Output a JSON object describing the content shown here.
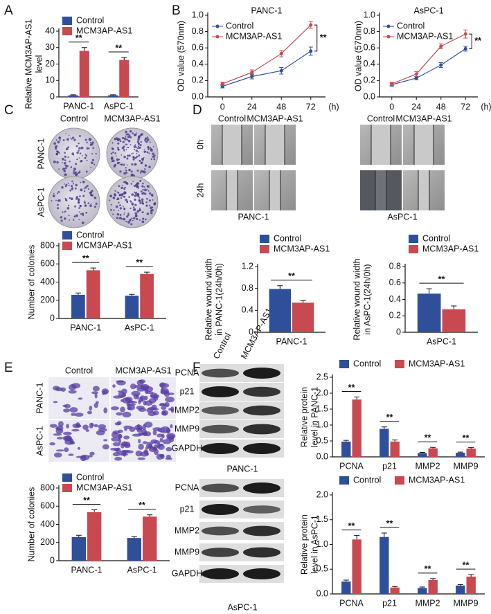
{
  "chart_data": [
    {
      "type": "bar",
      "ylabel": [
        "Relative MCM3AP-AS1",
        "level"
      ],
      "categories": [
        "PANC-1",
        "AsPC-1"
      ],
      "series": [
        {
          "name": "Control",
          "color": "#2f4f9b",
          "values": [
            1,
            1
          ],
          "errors": [
            0.3,
            0.3
          ]
        },
        {
          "name": "MCM3AP-AS1",
          "color": "#c8494f",
          "values": [
            28,
            22.5
          ],
          "errors": [
            2,
            1.5
          ]
        }
      ],
      "ylim": [
        0,
        40
      ],
      "yticks": [
        0,
        10,
        20,
        30,
        40
      ],
      "annotations": [
        "**",
        "**"
      ]
    },
    {
      "type": "line",
      "title": "PANC-1",
      "ylabel": [
        "OD value (570nm)"
      ],
      "x": [
        0,
        24,
        48,
        72
      ],
      "xlim": [
        -12,
        84
      ],
      "xticks": [
        0,
        24,
        48,
        72
      ],
      "xunit": "(h)",
      "series": [
        {
          "name": "Control",
          "color": "#2f4f9b",
          "values": [
            0.13,
            0.25,
            0.32,
            0.56
          ],
          "errors": [
            0.02,
            0.03,
            0.04,
            0.05
          ]
        },
        {
          "name": "MCM3AP-AS1",
          "color": "#c8494f",
          "values": [
            0.16,
            0.3,
            0.53,
            0.88
          ],
          "errors": [
            0.02,
            0.03,
            0.04,
            0.04
          ]
        }
      ],
      "ylim": [
        0,
        1.0
      ],
      "yticks": [
        {
          "value": 0,
          "label": "0.0"
        },
        0.2,
        0.4,
        0.6,
        0.8,
        {
          "value": 1.0,
          "label": "1.0"
        }
      ],
      "annotations": [
        "**"
      ]
    },
    {
      "type": "line",
      "title": "AsPC-1",
      "ylabel": [
        "OD value (570nm)"
      ],
      "x": [
        0,
        24,
        48,
        72
      ],
      "xlim": [
        -12,
        84
      ],
      "xticks": [
        0,
        24,
        48,
        72
      ],
      "xunit": "(h)",
      "series": [
        {
          "name": "Control",
          "color": "#2f4f9b",
          "values": [
            0.15,
            0.23,
            0.39,
            0.59
          ],
          "errors": [
            0.02,
            0.02,
            0.03,
            0.03
          ]
        },
        {
          "name": "MCM3AP-AS1",
          "color": "#c8494f",
          "values": [
            0.16,
            0.28,
            0.62,
            0.77
          ],
          "errors": [
            0.02,
            0.03,
            0.03,
            0.05
          ]
        }
      ],
      "ylim": [
        0,
        1.0
      ],
      "yticks": [
        {
          "value": 0,
          "label": "0.0"
        },
        0.2,
        0.4,
        0.6,
        0.8,
        {
          "value": 1.0,
          "label": "1.0"
        }
      ],
      "annotations": [
        "**"
      ]
    },
    {
      "type": "bar",
      "ylabel": [
        "Number of colonies"
      ],
      "categories": [
        "PANC-1",
        "AsPC-1"
      ],
      "series": [
        {
          "name": "Control",
          "color": "#2f4f9b",
          "values": [
            260,
            250
          ],
          "errors": [
            20,
            15
          ]
        },
        {
          "name": "MCM3AP-AS1",
          "color": "#c8494f",
          "values": [
            530,
            490
          ],
          "errors": [
            25,
            20
          ]
        }
      ],
      "ylim": [
        0,
        800
      ],
      "yticks": [
        0,
        200,
        400,
        600,
        800
      ],
      "annotations": [
        "**",
        "**"
      ]
    },
    {
      "type": "bar",
      "ylabel": [
        "Relative wound width",
        "in PANC-1(24h/0h)"
      ],
      "categories": [
        "PANC-1"
      ],
      "series": [
        {
          "name": "Control",
          "color": "#2f4f9b",
          "values": [
            0.79
          ],
          "errors": [
            0.06
          ]
        },
        {
          "name": "MCM3AP-AS1",
          "color": "#c8494f",
          "values": [
            0.54
          ],
          "errors": [
            0.04
          ]
        }
      ],
      "ylim": [
        0,
        1.2
      ],
      "yticks": [
        0,
        0.4,
        0.8,
        1.2
      ],
      "annotations": [
        "**"
      ]
    },
    {
      "type": "bar",
      "ylabel": [
        "Relative wound width",
        "in AsPC-1(24h/0h)"
      ],
      "categories": [
        "AsPC-1"
      ],
      "series": [
        {
          "name": "Control",
          "color": "#2f4f9b",
          "values": [
            0.47
          ],
          "errors": [
            0.06
          ]
        },
        {
          "name": "MCM3AP-AS1",
          "color": "#c8494f",
          "values": [
            0.28
          ],
          "errors": [
            0.04
          ]
        }
      ],
      "ylim": [
        0,
        0.8
      ],
      "yticks": [
        0,
        0.2,
        0.4,
        0.6,
        0.8
      ],
      "annotations": [
        "**"
      ]
    },
    {
      "type": "bar",
      "ylabel": [
        "Number of colonies"
      ],
      "categories": [
        "PANC-1",
        "AsPC-1"
      ],
      "series": [
        {
          "name": "Control",
          "color": "#2f4f9b",
          "values": [
            260,
            250
          ],
          "errors": [
            20,
            15
          ]
        },
        {
          "name": "MCM3AP-AS1",
          "color": "#c8494f",
          "values": [
            535,
            485
          ],
          "errors": [
            25,
            20
          ]
        }
      ],
      "ylim": [
        0,
        800
      ],
      "yticks": [
        0,
        200,
        400,
        600,
        800
      ],
      "annotations": [
        "**",
        "**"
      ]
    },
    {
      "type": "bar",
      "ylabel": [
        "Relative protein",
        "level in PANC-1"
      ],
      "categories": [
        "PCNA",
        "p21",
        "MMP2",
        "MMP9"
      ],
      "series": [
        {
          "name": "Control",
          "color": "#2f4f9b",
          "values": [
            0.48,
            0.88,
            0.12,
            0.13
          ],
          "errors": [
            0.04,
            0.06,
            0.02,
            0.02
          ]
        },
        {
          "name": "MCM3AP-AS1",
          "color": "#c8494f",
          "values": [
            1.8,
            0.48,
            0.27,
            0.26
          ],
          "errors": [
            0.08,
            0.05,
            0.03,
            0.03
          ]
        }
      ],
      "ylim": [
        0,
        2.5
      ],
      "yticks": [
        {
          "value": 0,
          "label": "0.0"
        },
        0.5,
        {
          "value": 1.0,
          "label": "1.0"
        },
        1.5,
        {
          "value": 2.0,
          "label": "2.0"
        },
        2.5
      ],
      "annotations": [
        "**",
        "**",
        "**",
        "**"
      ]
    },
    {
      "type": "bar",
      "ylabel": [
        "Relative protein",
        "level in AsPC-1"
      ],
      "categories": [
        "PCNA",
        "p21",
        "MMP2",
        "MMP9"
      ],
      "series": [
        {
          "name": "Control",
          "color": "#2f4f9b",
          "values": [
            0.25,
            1.15,
            0.12,
            0.17
          ],
          "errors": [
            0.03,
            0.08,
            0.02,
            0.02
          ]
        },
        {
          "name": "MCM3AP-AS1",
          "color": "#c8494f",
          "values": [
            1.1,
            0.13,
            0.28,
            0.35
          ],
          "errors": [
            0.08,
            0.02,
            0.03,
            0.04
          ]
        }
      ],
      "ylim": [
        0,
        2.0
      ],
      "yticks": [
        {
          "value": 0,
          "label": "0.0"
        },
        0.5,
        {
          "value": 1.0,
          "label": "1.0"
        },
        1.5,
        {
          "value": 2.0,
          "label": "2.0"
        }
      ],
      "annotations": [
        "**",
        "**",
        "**",
        "**"
      ]
    }
  ],
  "figure": {
    "panels": [
      "A",
      "B",
      "C",
      "D",
      "E",
      "F"
    ],
    "C": {
      "cols": [
        "Control",
        "MCM3AP-AS1"
      ],
      "rows": [
        "PANC-1",
        "AsPC-1"
      ]
    },
    "D": {
      "rows": [
        "0h",
        "24h"
      ],
      "groups": [
        {
          "cols": [
            "Control",
            "MCM3AP-AS1"
          ],
          "caption": "PANC-1"
        },
        {
          "cols": [
            "Control",
            "MCM3AP-AS1"
          ],
          "caption": "AsPC-1"
        }
      ]
    },
    "E": {
      "cols": [
        "Control",
        "MCM3AP-AS1"
      ],
      "rows": [
        "PANC-1",
        "AsPC-1"
      ]
    },
    "F": {
      "cols": [
        "Control",
        "MCM3AP-AS1"
      ],
      "blots": [
        {
          "proteins": [
            "PCNA",
            "p21",
            "MMP2",
            "MMP9",
            "GAPDH"
          ],
          "caption": "PANC-1"
        },
        {
          "proteins": [
            "PCNA",
            "p21",
            "MMP2",
            "MMP9",
            "GAPDH"
          ],
          "caption": "AsPC-1"
        }
      ]
    }
  }
}
